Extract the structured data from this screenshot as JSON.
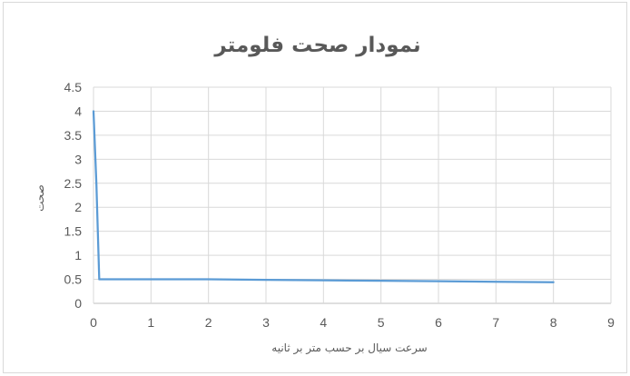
{
  "chart_data": {
    "type": "line",
    "title": "نمودار صحت فلومتر",
    "xlabel": "سرعت سیال بر حسب متر بر ثانیه",
    "ylabel": "صحت",
    "xlim": [
      0,
      9
    ],
    "ylim": [
      0,
      4.5
    ],
    "x_ticks": [
      "0",
      "1",
      "2",
      "3",
      "4",
      "5",
      "6",
      "7",
      "8",
      "9"
    ],
    "y_ticks": [
      "0",
      "0.5",
      "1",
      "1.5",
      "2",
      "2.5",
      "3",
      "3.5",
      "4",
      "4.5"
    ],
    "grid": true,
    "legend": "none",
    "series": [
      {
        "color": "#5b9bd5",
        "x": [
          0,
          0.05,
          0.1,
          1,
          2,
          3,
          4,
          5,
          6,
          7,
          8
        ],
        "y": [
          4,
          2.5,
          0.5,
          0.5,
          0.5,
          0.49,
          0.48,
          0.47,
          0.46,
          0.45,
          0.44
        ]
      }
    ]
  }
}
